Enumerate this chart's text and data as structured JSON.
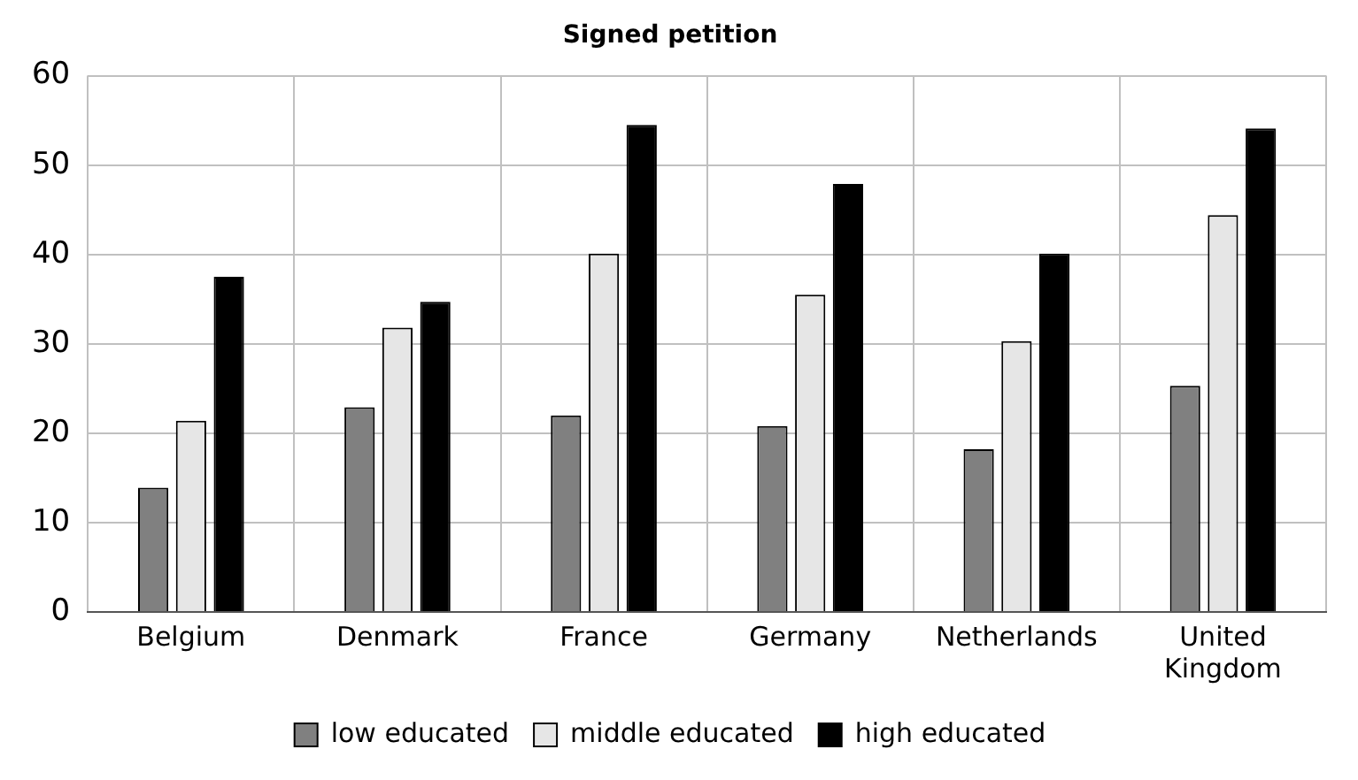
{
  "chart_data": {
    "type": "bar",
    "title": "Signed petition",
    "categories": [
      "Belgium",
      "Denmark",
      "France",
      "Germany",
      "Netherlands",
      "United Kingdom"
    ],
    "series": [
      {
        "name": "low educated",
        "color": "#808080",
        "values": [
          13.9,
          22.9,
          22.0,
          20.8,
          18.2,
          25.3
        ]
      },
      {
        "name": "middle educated",
        "color": "#e6e6e6",
        "values": [
          21.4,
          31.8,
          40.1,
          35.5,
          30.3,
          44.4
        ]
      },
      {
        "name": "high educated",
        "color": "#000000",
        "values": [
          37.5,
          34.7,
          54.5,
          47.9,
          40.1,
          54.1
        ]
      }
    ],
    "ylim": [
      0,
      60
    ],
    "yticks": [
      0,
      10,
      20,
      30,
      40,
      50,
      60
    ],
    "grid": true,
    "legend": "bottom"
  }
}
